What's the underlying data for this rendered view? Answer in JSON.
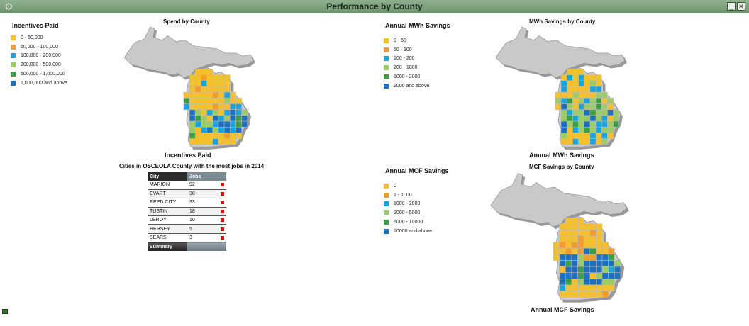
{
  "window": {
    "title": "Performance by County",
    "minimize_label": "_",
    "close_label": "✕"
  },
  "colors": {
    "c0": "#f5c02e",
    "c1": "#f39c2c",
    "c2": "#1aa3dd",
    "c3": "#9ccc65",
    "c4": "#3c9e44",
    "c5": "#1f6fbf",
    "gray": "#c9c9c9",
    "grayStroke": "#8a8a8a"
  },
  "panels": {
    "spend": {
      "map_title": "Spend by County",
      "legend_title": "Incentives Paid",
      "legend": [
        "0 - 50,000",
        "50,000 - 100,000",
        "100,000 - 200,000",
        "200,000 - 500,000",
        "500,000 - 1,000,000",
        "1,000,000 and above"
      ],
      "footer": "Incentives Paid"
    },
    "mwh": {
      "map_title": "MWh Savings by County",
      "legend_title": "Annual MWh Savings",
      "legend": [
        "0 - 50",
        "50 - 100",
        "100 - 200",
        "200 - 1000",
        "1000 - 2000",
        "2000 and above"
      ],
      "footer": "Annual MWh Savings"
    },
    "mcf": {
      "map_title": "MCF Savings by County",
      "legend_title": "Annual MCF Savings",
      "legend": [
        "0",
        "1 - 1000",
        "1000 - 2000",
        "2000 - 5000",
        "5000 - 10000",
        "10000 and above"
      ],
      "footer": "Annual MCF Savings"
    }
  },
  "jobs_table": {
    "title": "Cities in OSCEOLA County with the most jobs in 2014",
    "col_city": "City",
    "col_jobs": "Jobs",
    "rows": [
      {
        "city": "MARION",
        "jobs": "92"
      },
      {
        "city": "EVART",
        "jobs": "38"
      },
      {
        "city": "REED CITY",
        "jobs": "33"
      },
      {
        "city": "TUSTIN",
        "jobs": "18"
      },
      {
        "city": "LEROY",
        "jobs": "10"
      },
      {
        "city": "HERSEY",
        "jobs": "5"
      },
      {
        "city": "SEARS",
        "jobs": "3"
      }
    ],
    "summary_label": "Summary"
  }
}
